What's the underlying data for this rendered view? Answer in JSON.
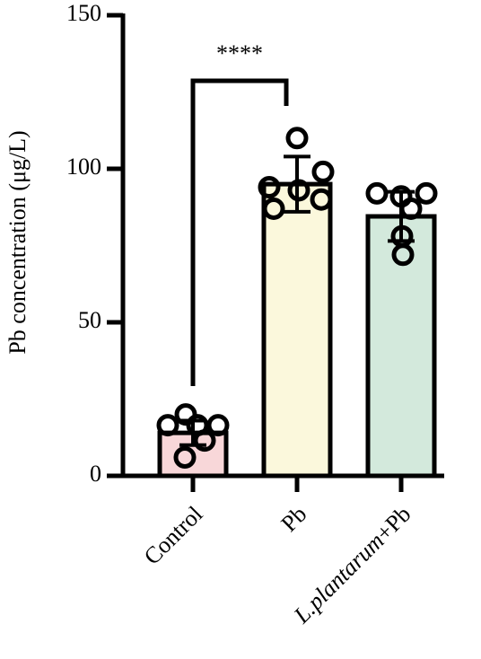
{
  "chart_data": {
    "type": "bar",
    "y_label": "Pb concentration (μg/L)",
    "categories": [
      "Control",
      "Pb",
      "L.plantarum+Pb"
    ],
    "values": [
      14,
      95,
      84.5
    ],
    "errors": [
      4,
      9,
      8
    ],
    "points": [
      [
        20,
        16.5,
        16.5,
        16.5,
        11.5,
        6
      ],
      [
        110,
        99,
        94,
        93,
        90,
        87
      ],
      [
        92,
        92,
        91,
        87,
        78,
        72
      ]
    ],
    "colors": [
      "#f8d7d9",
      "#fbf8dc",
      "#d3e9dc"
    ],
    "annotation": "****",
    "ylim": [
      0,
      150
    ],
    "yticks": [
      0,
      50,
      100,
      150
    ],
    "grid": false
  }
}
